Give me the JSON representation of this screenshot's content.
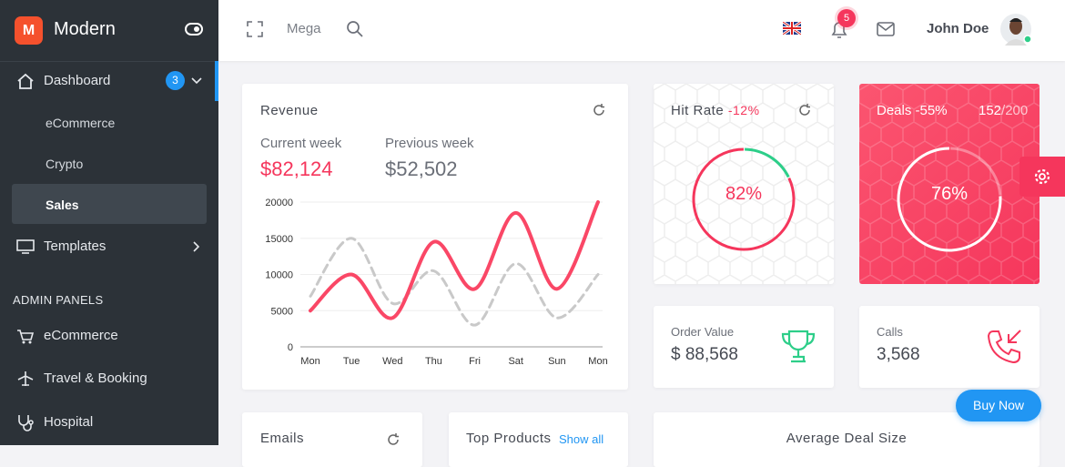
{
  "sidebar": {
    "brand": "Modern",
    "logo": "M",
    "menu": [
      {
        "label": "Dashboard",
        "badge": 3
      },
      {
        "label": "eCommerce"
      },
      {
        "label": "Crypto"
      },
      {
        "label": "Sales"
      },
      {
        "label": "Templates"
      }
    ],
    "section": "ADMIN PANELS",
    "admin_menu": [
      "eCommerce",
      "Travel & Booking",
      "Hospital"
    ]
  },
  "topbar": {
    "mega": "Mega",
    "notifications": 5,
    "user": "John Doe"
  },
  "revenue": {
    "title": "Revenue",
    "current_week": {
      "label": "Current week",
      "value": "$82,124"
    },
    "previous_week": {
      "label": "Previous week",
      "value": "$52,502"
    },
    "chart_data": {
      "type": "line",
      "categories": [
        "Mon",
        "Tue",
        "Wed",
        "Thu",
        "Fri",
        "Sat",
        "Sun",
        "Mon"
      ],
      "series": [
        {
          "color": "#fa4766",
          "values": [
            5000,
            10000,
            4000,
            14500,
            8000,
            18500,
            8000,
            20000
          ]
        },
        {
          "color": "#c9c9c9",
          "values": [
            7000,
            15000,
            6000,
            10500,
            3000,
            11500,
            4000,
            10000
          ]
        }
      ],
      "ylim": [
        0,
        20000
      ],
      "yticks": [
        0,
        5000,
        10000,
        15000,
        20000
      ],
      "grid": true
    }
  },
  "hit_rate": {
    "title": "Hit Rate",
    "change": "-12%",
    "value": 82,
    "value_label": "82%"
  },
  "deals": {
    "title": "Deals",
    "change": "-55%",
    "count": 152,
    "total": "/200",
    "value": 76,
    "value_label": "76%"
  },
  "order_value": {
    "label": "Order Value",
    "value": "$ 88,568"
  },
  "calls": {
    "label": "Calls",
    "value": "3,568"
  },
  "bottom": {
    "emails": "Emails",
    "top_products": "Top Products",
    "show_all": "Show all",
    "average_deal_size": "Average Deal Size"
  },
  "buy_now": "Buy Now"
}
